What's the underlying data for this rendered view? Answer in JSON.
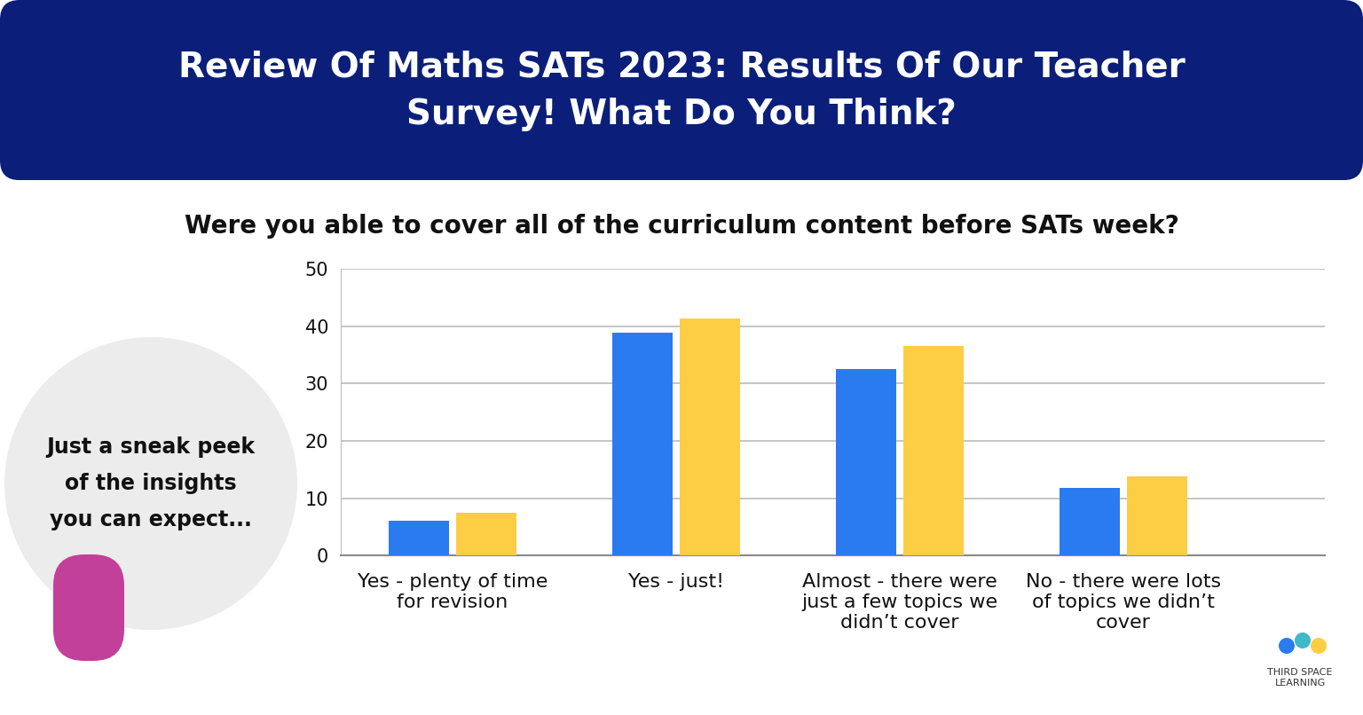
{
  "banner": {
    "title": "Review Of Maths SATs 2023: Results Of Our Teacher Survey! What Do You Think?"
  },
  "callout": {
    "text": "Just a sneak peek of the insights you can expect..."
  },
  "logo": {
    "text": "THIRD SPACE LEARNING"
  },
  "chart_data": {
    "type": "bar",
    "title": "Were you able to cover all of the curriculum content before SATs week?",
    "categories": [
      "Yes - plenty of time for revision",
      "Yes - just!",
      "Almost - there were just a few topics we didn’t cover",
      "No - there were lots of topics we didn’t cover"
    ],
    "series": [
      {
        "color": "#2b7bf0",
        "values": [
          6,
          38.8,
          32.6,
          11.8
        ]
      },
      {
        "color": "#fdcd44",
        "values": [
          7.5,
          41.4,
          36.6,
          13.8
        ]
      }
    ],
    "ylim": [
      0,
      50
    ],
    "yticks": [
      0,
      10,
      20,
      30,
      40,
      50
    ],
    "grid": true
  }
}
